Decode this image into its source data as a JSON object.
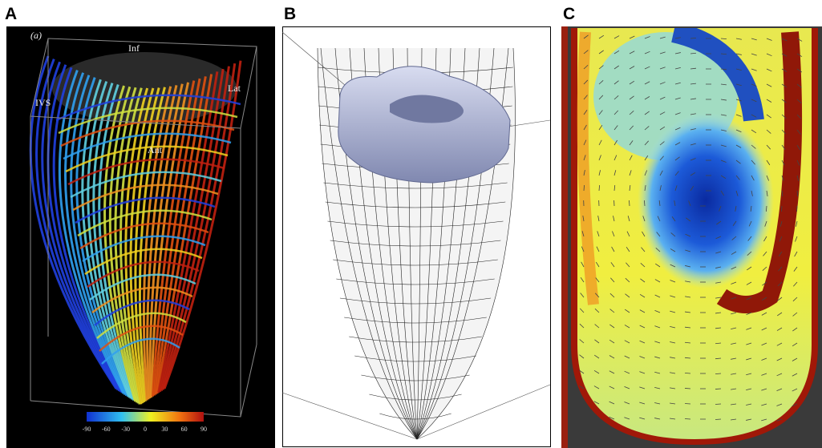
{
  "panels": [
    {
      "label": "A",
      "annotations": [
        "(a)",
        "Inf",
        "Lat",
        "IVS",
        "Ant"
      ],
      "colorbar_ticks": [
        -90,
        -60,
        -30,
        0,
        30,
        60,
        90
      ]
    },
    {
      "label": "B"
    },
    {
      "label": "C"
    }
  ]
}
